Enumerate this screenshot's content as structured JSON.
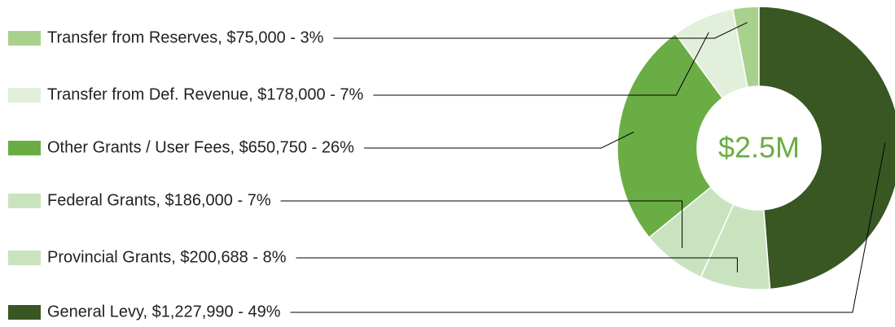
{
  "chart_data": {
    "type": "donut",
    "center_label": "$2.5M",
    "categories": [
      "Transfer from Reserves, $75,000 - 3%",
      "Transfer from Def. Revenue, $178,000 - 7%",
      "Other Grants / User Fees, $650,750 - 26%",
      "Federal Grants, $186,000 - 7%",
      "Provincial Grants, $200,688 - 8%",
      "General Levy, $1,227,990 - 49%"
    ],
    "values": [
      75000,
      178000,
      650750,
      186000,
      200688,
      1227990
    ],
    "colors": [
      "#a9d18e",
      "#e2efda",
      "#6aad45",
      "#c9e3bf",
      "#c9e3bf",
      "#385723"
    ]
  }
}
